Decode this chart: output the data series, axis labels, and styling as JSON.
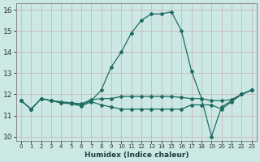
{
  "xlabel": "Humidex (Indice chaleur)",
  "background_color": "#cce8e4",
  "grid_color": "#c8b8b8",
  "line_color": "#1e6b62",
  "xlim": [
    -0.5,
    23.5
  ],
  "ylim": [
    9.8,
    16.3
  ],
  "yticks": [
    10,
    11,
    12,
    13,
    14,
    15,
    16
  ],
  "xticks": [
    0,
    1,
    2,
    3,
    4,
    5,
    6,
    7,
    8,
    9,
    10,
    11,
    12,
    13,
    14,
    15,
    16,
    17,
    18,
    19,
    20,
    21,
    22,
    23
  ],
  "series": [
    {
      "x": [
        0,
        1,
        2,
        3,
        4,
        5,
        6,
        7,
        8,
        9,
        10,
        11,
        12,
        13,
        14,
        15,
        16,
        17,
        18,
        19,
        20,
        21,
        22,
        23
      ],
      "y": [
        11.7,
        11.3,
        11.8,
        11.7,
        11.6,
        11.6,
        11.5,
        11.7,
        12.2,
        13.3,
        14.0,
        14.9,
        15.5,
        15.8,
        15.8,
        15.9,
        15.0,
        13.1,
        11.8,
        10.0,
        11.4,
        11.7,
        12.0,
        12.2
      ]
    },
    {
      "x": [
        0,
        1,
        2,
        3,
        4,
        5,
        6,
        7,
        8,
        9,
        10,
        11,
        12,
        13,
        14,
        15,
        16,
        17,
        18,
        19,
        20,
        21,
        22,
        23
      ],
      "y": [
        11.7,
        11.3,
        11.8,
        11.7,
        11.65,
        11.6,
        11.55,
        11.75,
        11.8,
        11.8,
        11.9,
        11.9,
        11.9,
        11.9,
        11.9,
        11.9,
        11.85,
        11.8,
        11.8,
        11.7,
        11.7,
        11.75,
        12.0,
        12.2
      ]
    },
    {
      "x": [
        0,
        1,
        2,
        3,
        4,
        5,
        6,
        7,
        8,
        9,
        10,
        11,
        12,
        13,
        14,
        15,
        16,
        17,
        18,
        19,
        20,
        21,
        22,
        23
      ],
      "y": [
        11.7,
        11.3,
        11.8,
        11.7,
        11.6,
        11.55,
        11.45,
        11.65,
        11.5,
        11.4,
        11.3,
        11.3,
        11.3,
        11.3,
        11.3,
        11.3,
        11.3,
        11.5,
        11.5,
        11.5,
        11.3,
        11.65,
        12.0,
        12.2
      ]
    }
  ]
}
